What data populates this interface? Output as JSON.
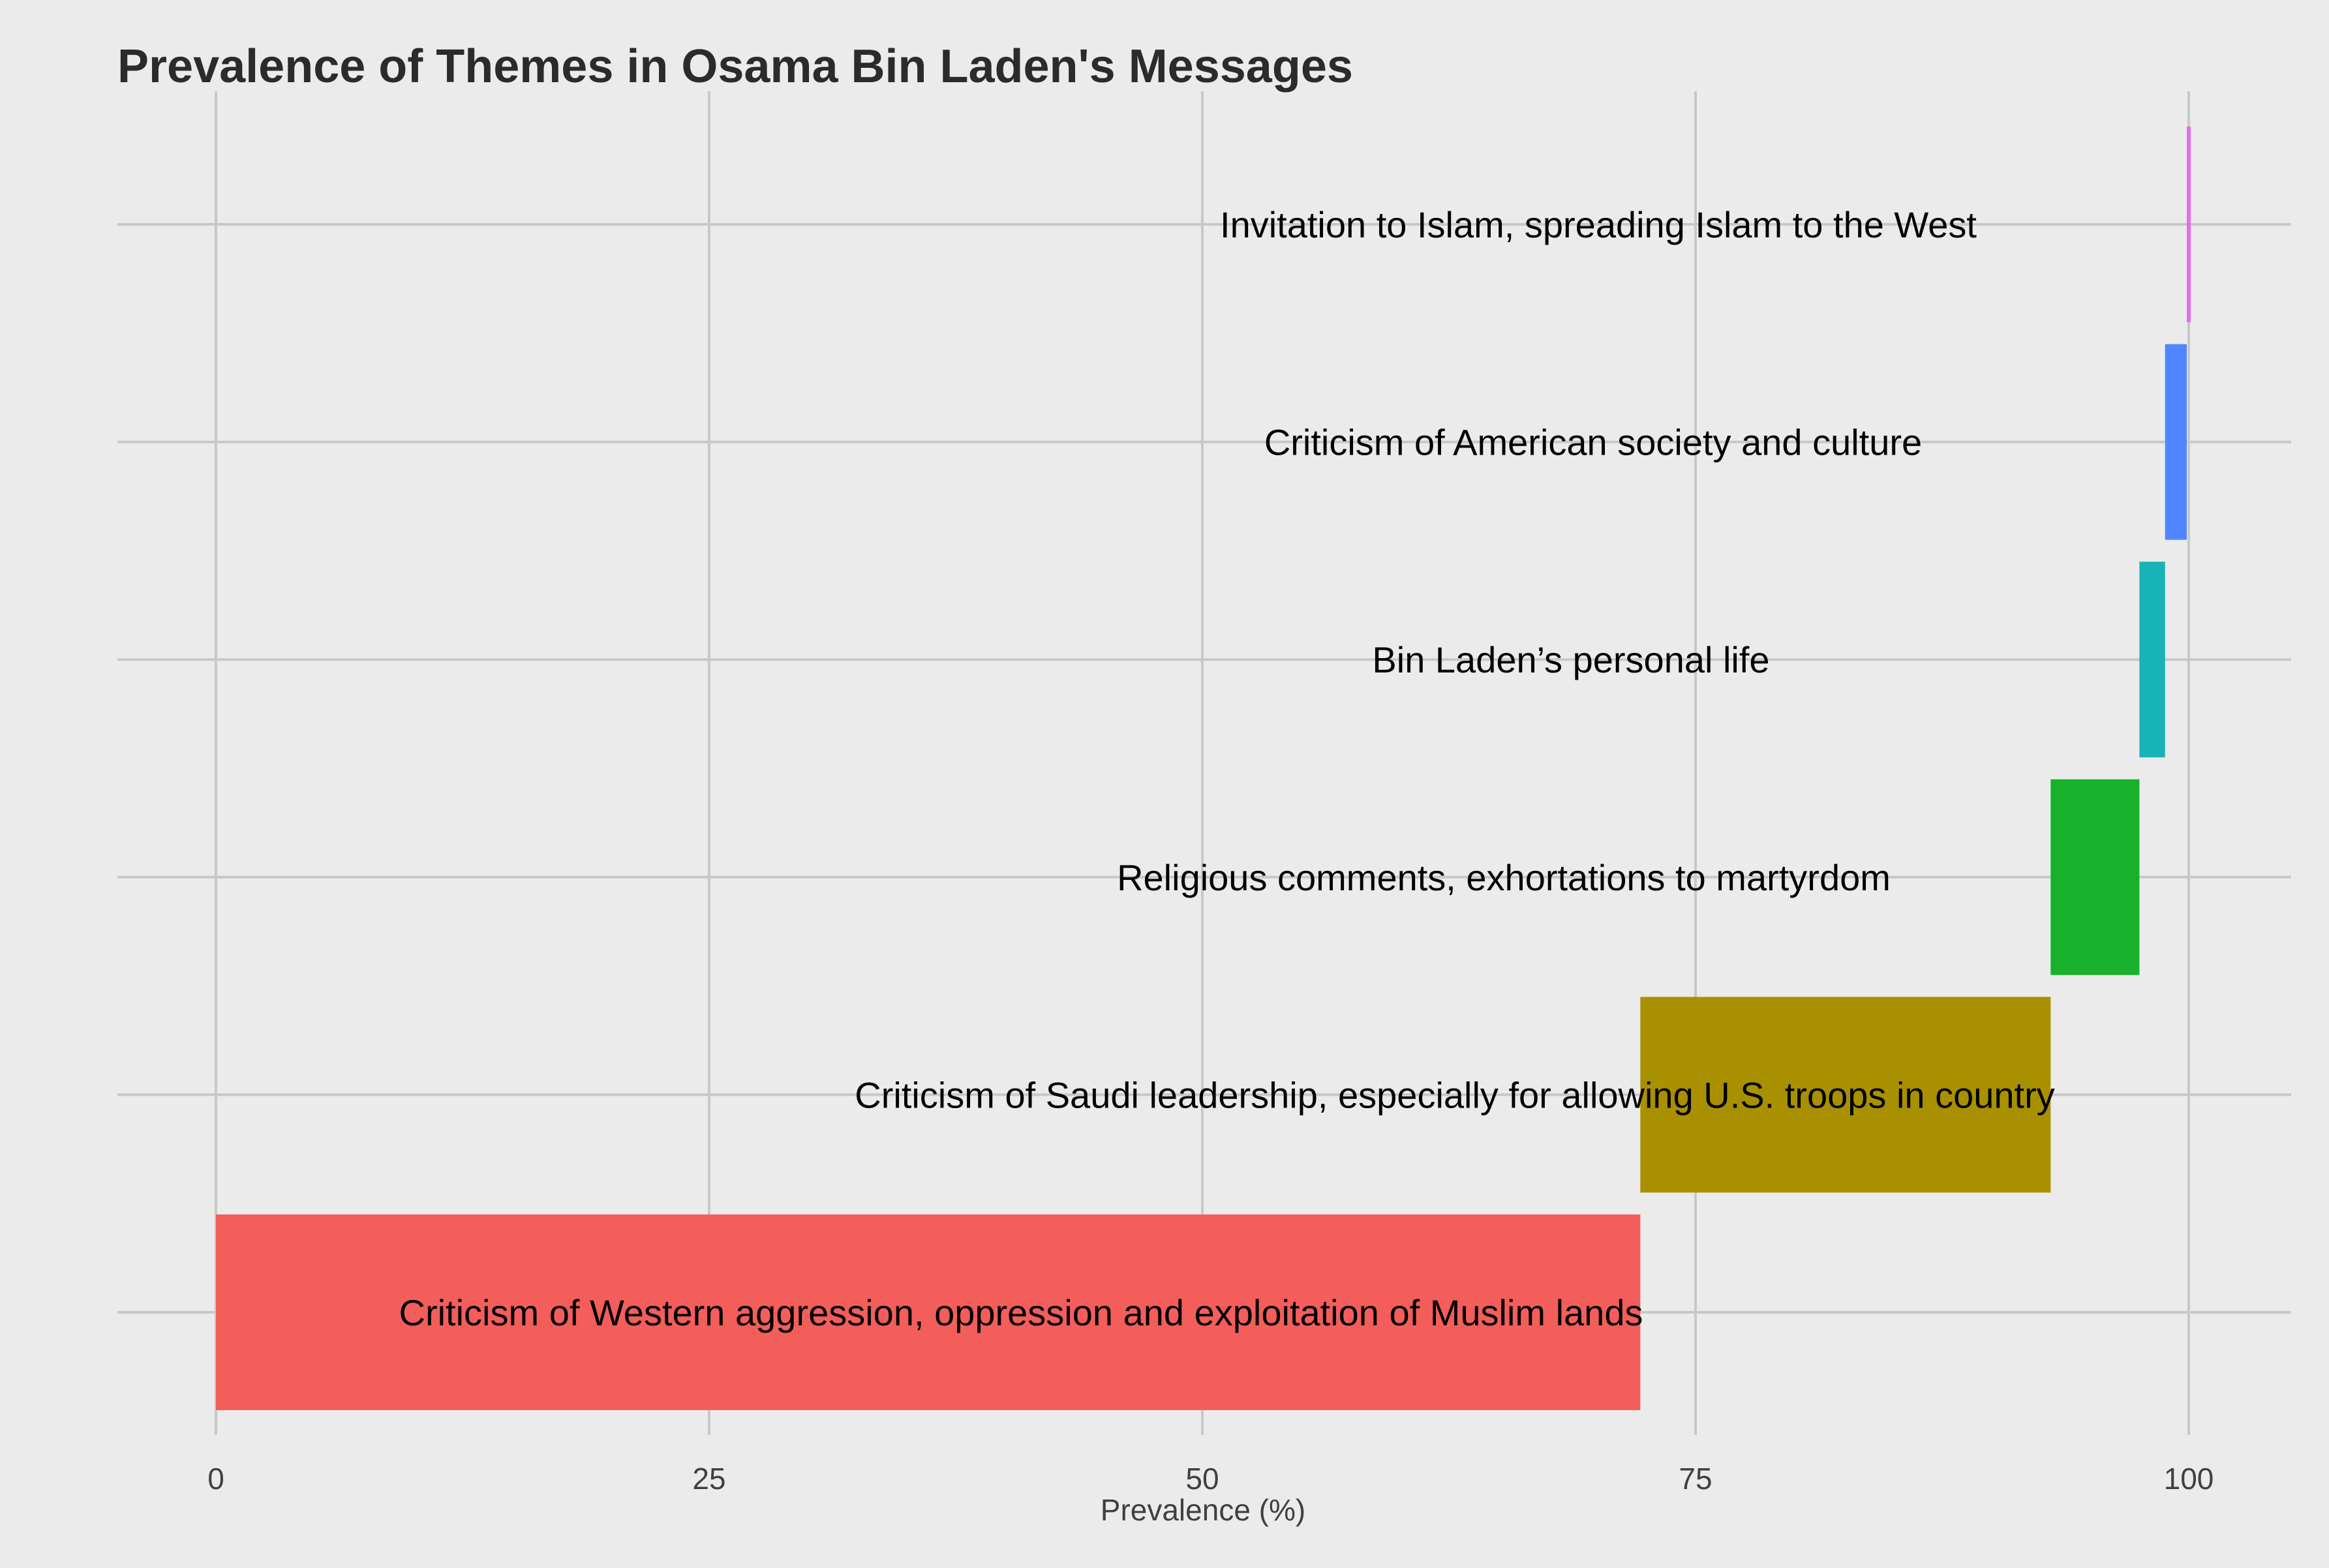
{
  "chart_data": {
    "type": "bar",
    "orientation": "horizontal",
    "layout": "waterfall",
    "title": "Prevalence of Themes in Osama Bin Laden's Messages",
    "xlabel": "Prevalence (%)",
    "ylabel": "",
    "xlim": [
      -5,
      105
    ],
    "xticks": [
      0,
      25,
      50,
      75,
      100
    ],
    "grid": true,
    "legend": "none",
    "categories": [
      "Criticism of Western aggression, oppression and exploitation of Muslim lands",
      "Criticism of Saudi leadership, especially for allowing U.S. troops in country",
      "Religious comments, exhortations to martyrdom",
      "Bin Laden’s personal life",
      "Criticism of American society and culture",
      "Invitation to Islam, spreading Islam to the West"
    ],
    "values": [
      72.2,
      20.8,
      4.5,
      1.3,
      1.1,
      0.2
    ],
    "cumulative_end": [
      72.2,
      93.0,
      97.5,
      98.8,
      99.9,
      100.1
    ],
    "colors": [
      "#F35E5A",
      "#A89000",
      "#17B12B",
      "#17B3B7",
      "#5086FF",
      "#E86BE9"
    ],
    "background_color": "#EBEBEB",
    "grid_color": "#C8C8C8"
  }
}
